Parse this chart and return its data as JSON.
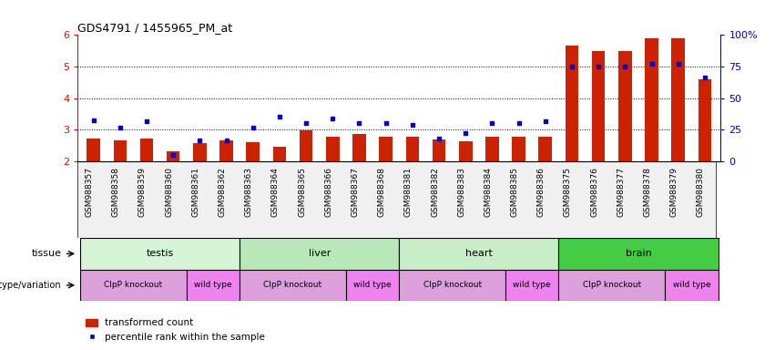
{
  "title": "GDS4791 / 1455965_PM_at",
  "samples": [
    "GSM988357",
    "GSM988358",
    "GSM988359",
    "GSM988360",
    "GSM988361",
    "GSM988362",
    "GSM988363",
    "GSM988364",
    "GSM988365",
    "GSM988366",
    "GSM988367",
    "GSM988368",
    "GSM988381",
    "GSM988382",
    "GSM988383",
    "GSM988384",
    "GSM988385",
    "GSM988386",
    "GSM988375",
    "GSM988376",
    "GSM988377",
    "GSM988378",
    "GSM988379",
    "GSM988380"
  ],
  "red_values": [
    2.72,
    2.65,
    2.71,
    2.3,
    2.56,
    2.65,
    2.6,
    2.45,
    2.97,
    2.78,
    2.87,
    2.78,
    2.76,
    2.67,
    2.64,
    2.77,
    2.76,
    2.77,
    5.65,
    5.5,
    5.5,
    5.9,
    5.9,
    4.6
  ],
  "blue_values": [
    3.3,
    3.05,
    3.25,
    2.2,
    2.65,
    2.65,
    3.05,
    3.42,
    3.2,
    3.35,
    3.2,
    3.2,
    3.15,
    2.7,
    2.9,
    3.2,
    3.2,
    3.25,
    5.0,
    5.0,
    5.0,
    5.08,
    5.08,
    4.65
  ],
  "ylim_left": [
    2,
    6
  ],
  "ylim_right": [
    0,
    100
  ],
  "yticks_left": [
    2,
    3,
    4,
    5,
    6
  ],
  "yticks_right": [
    0,
    25,
    50,
    75,
    100
  ],
  "tissue_groups": [
    {
      "label": "testis",
      "start": 0,
      "end": 6,
      "color": "#d6f5d6"
    },
    {
      "label": "liver",
      "start": 6,
      "end": 12,
      "color": "#b8e8b8"
    },
    {
      "label": "heart",
      "start": 12,
      "end": 18,
      "color": "#c8eec8"
    },
    {
      "label": "brain",
      "start": 18,
      "end": 24,
      "color": "#44cc44"
    }
  ],
  "genotype_groups": [
    {
      "label": "ClpP knockout",
      "start": 0,
      "end": 4,
      "color": "#dda0dd"
    },
    {
      "label": "wild type",
      "start": 4,
      "end": 6,
      "color": "#ee82ee"
    },
    {
      "label": "ClpP knockout",
      "start": 6,
      "end": 10,
      "color": "#dda0dd"
    },
    {
      "label": "wild type",
      "start": 10,
      "end": 12,
      "color": "#ee82ee"
    },
    {
      "label": "ClpP knockout",
      "start": 12,
      "end": 16,
      "color": "#dda0dd"
    },
    {
      "label": "wild type",
      "start": 16,
      "end": 18,
      "color": "#ee82ee"
    },
    {
      "label": "ClpP knockout",
      "start": 18,
      "end": 22,
      "color": "#dda0dd"
    },
    {
      "label": "wild type",
      "start": 22,
      "end": 24,
      "color": "#ee82ee"
    }
  ],
  "bar_color": "#cc2200",
  "dot_color": "#0000cc",
  "right_axis_color": "#0000cc",
  "tissue_label": "tissue",
  "genotype_label": "genotype/variation",
  "legend_items": [
    "transformed count",
    "percentile rank within the sample"
  ],
  "bg_color": "#f0f0f0"
}
